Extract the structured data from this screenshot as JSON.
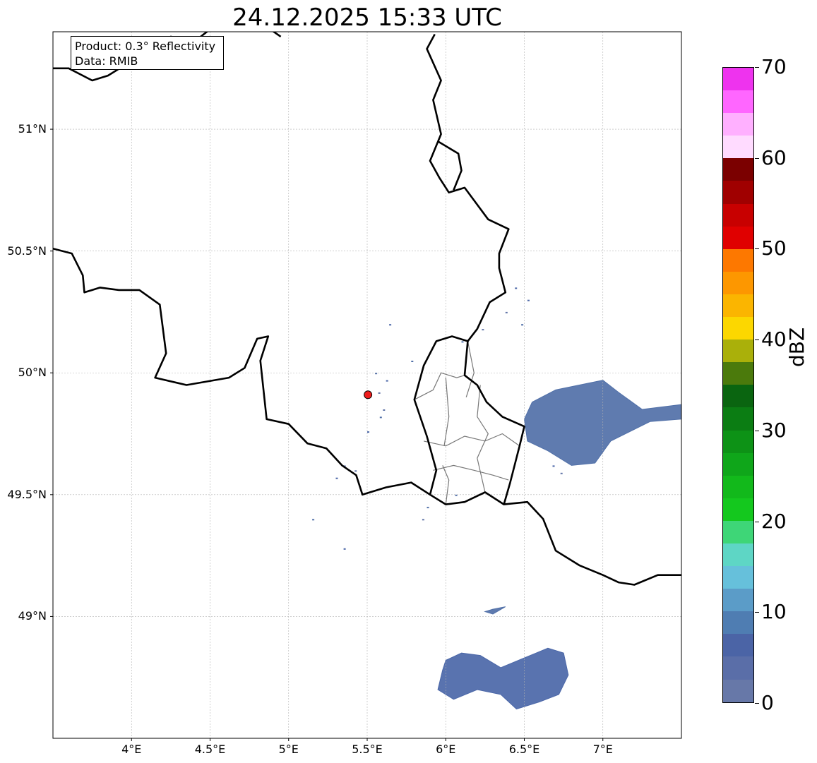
{
  "title": "24.12.2025 15:33 UTC",
  "info_box": {
    "product": "Product: 0.3° Reflectivity",
    "data": "Data: RMIB"
  },
  "map": {
    "extent": {
      "lon": [
        3.5,
        7.5
      ],
      "lat": [
        48.5,
        51.4
      ]
    },
    "lat_ticks": [
      {
        "value": 51.0,
        "label": "51°N"
      },
      {
        "value": 50.5,
        "label": "50.5°N"
      },
      {
        "value": 50.0,
        "label": "50°N"
      },
      {
        "value": 49.5,
        "label": "49.5°N"
      },
      {
        "value": 49.0,
        "label": "49°N"
      }
    ],
    "lon_ticks": [
      {
        "value": 4.0,
        "label": "4°E"
      },
      {
        "value": 4.5,
        "label": "4.5°E"
      },
      {
        "value": 5.0,
        "label": "5°E"
      },
      {
        "value": 5.5,
        "label": "5.5°E"
      },
      {
        "value": 6.0,
        "label": "6°E"
      },
      {
        "value": 6.5,
        "label": "6.5°E"
      },
      {
        "value": 7.0,
        "label": "7°E"
      }
    ],
    "grid": true,
    "radar_site": {
      "lon": 5.505,
      "lat": 49.91,
      "color": "#ee1c1c"
    },
    "borders": [
      [
        [
          3.5,
          50.51
        ],
        [
          3.62,
          50.49
        ],
        [
          3.69,
          50.4
        ],
        [
          3.7,
          50.33
        ],
        [
          3.8,
          50.35
        ],
        [
          3.92,
          50.34
        ],
        [
          4.05,
          50.34
        ],
        [
          4.18,
          50.28
        ],
        [
          4.22,
          50.08
        ],
        [
          4.15,
          49.98
        ],
        [
          4.35,
          49.95
        ],
        [
          4.62,
          49.98
        ],
        [
          4.72,
          50.02
        ],
        [
          4.8,
          50.14
        ],
        [
          4.87,
          50.15
        ],
        [
          4.82,
          50.05
        ],
        [
          4.86,
          49.81
        ],
        [
          5.0,
          49.79
        ],
        [
          5.12,
          49.71
        ],
        [
          5.24,
          49.69
        ],
        [
          5.34,
          49.62
        ],
        [
          5.43,
          49.58
        ],
        [
          5.47,
          49.5
        ],
        [
          5.62,
          49.53
        ],
        [
          5.78,
          49.55
        ],
        [
          5.9,
          49.5
        ],
        [
          5.94,
          49.6
        ],
        [
          5.88,
          49.74
        ],
        [
          5.8,
          49.89
        ],
        [
          5.86,
          50.03
        ],
        [
          5.94,
          50.13
        ],
        [
          6.04,
          50.15
        ],
        [
          6.14,
          50.13
        ],
        [
          6.12,
          49.99
        ],
        [
          6.2,
          49.95
        ],
        [
          6.26,
          49.88
        ],
        [
          6.36,
          49.82
        ],
        [
          6.5,
          49.78
        ],
        [
          6.47,
          49.7
        ],
        [
          6.41,
          49.55
        ],
        [
          6.37,
          49.46
        ]
      ],
      [
        [
          5.9,
          49.5
        ],
        [
          6.0,
          49.46
        ],
        [
          6.12,
          49.47
        ],
        [
          6.25,
          49.51
        ],
        [
          6.37,
          49.46
        ],
        [
          6.52,
          49.47
        ],
        [
          6.62,
          49.4
        ],
        [
          6.7,
          49.27
        ],
        [
          6.85,
          49.21
        ],
        [
          7.0,
          49.17
        ],
        [
          7.1,
          49.14
        ],
        [
          7.2,
          49.13
        ],
        [
          7.35,
          49.17
        ],
        [
          7.5,
          49.17
        ]
      ],
      [
        [
          6.14,
          50.13
        ],
        [
          6.2,
          50.18
        ],
        [
          6.28,
          50.29
        ],
        [
          6.38,
          50.33
        ],
        [
          6.34,
          50.43
        ],
        [
          6.34,
          50.49
        ],
        [
          6.4,
          50.59
        ],
        [
          6.27,
          50.63
        ],
        [
          6.12,
          50.76
        ],
        [
          6.02,
          50.74
        ],
        [
          5.96,
          50.8
        ],
        [
          5.9,
          50.87
        ],
        [
          5.97,
          50.98
        ],
        [
          5.92,
          51.12
        ],
        [
          5.97,
          51.2
        ],
        [
          5.88,
          51.33
        ],
        [
          5.93,
          51.39
        ]
      ],
      [
        [
          4.95,
          51.38
        ],
        [
          4.77,
          51.46
        ],
        [
          4.56,
          51.44
        ],
        [
          4.4,
          51.36
        ],
        [
          4.25,
          51.38
        ],
        [
          4.0,
          51.28
        ],
        [
          3.85,
          51.22
        ],
        [
          3.75,
          51.2
        ],
        [
          3.6,
          51.25
        ],
        [
          3.5,
          51.25
        ]
      ],
      [
        [
          5.95,
          50.95
        ],
        [
          6.08,
          50.9
        ],
        [
          6.1,
          50.83
        ],
        [
          6.05,
          50.75
        ]
      ]
    ],
    "internal_borders": [
      [
        [
          5.8,
          49.89
        ],
        [
          5.92,
          49.93
        ],
        [
          5.97,
          50.0
        ],
        [
          6.07,
          49.98
        ],
        [
          6.12,
          49.99
        ]
      ],
      [
        [
          5.86,
          49.72
        ],
        [
          6.0,
          49.7
        ],
        [
          6.12,
          49.74
        ],
        [
          6.25,
          49.72
        ],
        [
          6.36,
          49.75
        ],
        [
          6.47,
          49.7
        ]
      ],
      [
        [
          5.92,
          49.6
        ],
        [
          6.05,
          49.62
        ],
        [
          6.18,
          49.6
        ],
        [
          6.3,
          49.58
        ],
        [
          6.4,
          49.56
        ]
      ],
      [
        [
          6.0,
          49.46
        ],
        [
          6.02,
          49.56
        ],
        [
          5.98,
          49.62
        ]
      ],
      [
        [
          6.0,
          49.98
        ],
        [
          6.02,
          49.82
        ],
        [
          5.99,
          49.7
        ]
      ],
      [
        [
          6.22,
          49.95
        ],
        [
          6.2,
          49.82
        ],
        [
          6.27,
          49.75
        ],
        [
          6.2,
          49.65
        ],
        [
          6.25,
          49.51
        ]
      ],
      [
        [
          6.14,
          50.13
        ],
        [
          6.18,
          50.0
        ],
        [
          6.13,
          49.9
        ]
      ]
    ],
    "echo_areas": [
      {
        "name": "east",
        "color": "#5170a8",
        "points": [
          [
            6.55,
            49.88
          ],
          [
            6.7,
            49.93
          ],
          [
            6.85,
            49.95
          ],
          [
            7.0,
            49.97
          ],
          [
            7.1,
            49.92
          ],
          [
            7.25,
            49.85
          ],
          [
            7.5,
            49.87
          ],
          [
            7.5,
            49.81
          ],
          [
            7.3,
            49.8
          ],
          [
            7.05,
            49.72
          ],
          [
            6.95,
            49.63
          ],
          [
            6.8,
            49.62
          ],
          [
            6.65,
            49.68
          ],
          [
            6.52,
            49.72
          ],
          [
            6.5,
            49.81
          ]
        ]
      },
      {
        "name": "south-west",
        "color": "#4b67a8",
        "points": [
          [
            6.0,
            48.82
          ],
          [
            6.1,
            48.85
          ],
          [
            6.22,
            48.84
          ],
          [
            6.35,
            48.79
          ],
          [
            6.5,
            48.83
          ],
          [
            6.65,
            48.87
          ],
          [
            6.75,
            48.85
          ],
          [
            6.78,
            48.76
          ],
          [
            6.72,
            48.68
          ],
          [
            6.6,
            48.65
          ],
          [
            6.45,
            48.62
          ],
          [
            6.35,
            48.68
          ],
          [
            6.2,
            48.7
          ],
          [
            6.05,
            48.66
          ],
          [
            5.95,
            48.7
          ],
          [
            5.98,
            48.78
          ]
        ]
      },
      {
        "name": "south-small",
        "color": "#5170a8",
        "points": [
          [
            6.25,
            49.02
          ],
          [
            6.3,
            49.03
          ],
          [
            6.38,
            49.04
          ],
          [
            6.3,
            49.01
          ]
        ]
      }
    ],
    "speckles": [
      [
        5.58,
        49.82
      ],
      [
        5.62,
        49.97
      ],
      [
        5.57,
        49.92
      ],
      [
        5.55,
        50.0
      ],
      [
        6.44,
        50.35
      ],
      [
        6.38,
        50.25
      ],
      [
        6.48,
        50.2
      ],
      [
        6.52,
        50.3
      ],
      [
        6.23,
        50.18
      ],
      [
        6.1,
        50.13
      ],
      [
        5.3,
        49.57
      ],
      [
        5.42,
        49.6
      ],
      [
        5.15,
        49.4
      ],
      [
        5.35,
        49.28
      ],
      [
        5.85,
        49.4
      ],
      [
        5.88,
        49.45
      ],
      [
        6.68,
        49.62
      ],
      [
        6.73,
        49.59
      ],
      [
        6.06,
        49.5
      ],
      [
        5.5,
        49.76
      ],
      [
        5.6,
        49.85
      ],
      [
        5.78,
        50.05
      ],
      [
        5.64,
        50.2
      ],
      [
        5.35,
        49.62
      ]
    ],
    "speckle_colors": [
      "#5170a8",
      "#4b67a8",
      "#6276a8"
    ]
  },
  "colorbar": {
    "unit": "dBZ",
    "min": 0,
    "max": 70,
    "ticks": [
      0,
      10,
      20,
      30,
      40,
      50,
      60,
      70
    ],
    "colors": [
      "#6778a8",
      "#5a6ea8",
      "#4b64a6",
      "#4f7db2",
      "#5b9cc8",
      "#66c0db",
      "#5ed6c5",
      "#3ed677",
      "#14c81e",
      "#12b91b",
      "#0fa61a",
      "#0d9216",
      "#0b7d13",
      "#0a6510",
      "#4b7a0c",
      "#aab00a",
      "#fcd700",
      "#fbb500",
      "#fd9700",
      "#fd7800",
      "#e00000",
      "#c80000",
      "#a00000",
      "#7b0000",
      "#ffdbff",
      "#ffb0ff",
      "#ff66ff",
      "#ee33ee"
    ]
  }
}
